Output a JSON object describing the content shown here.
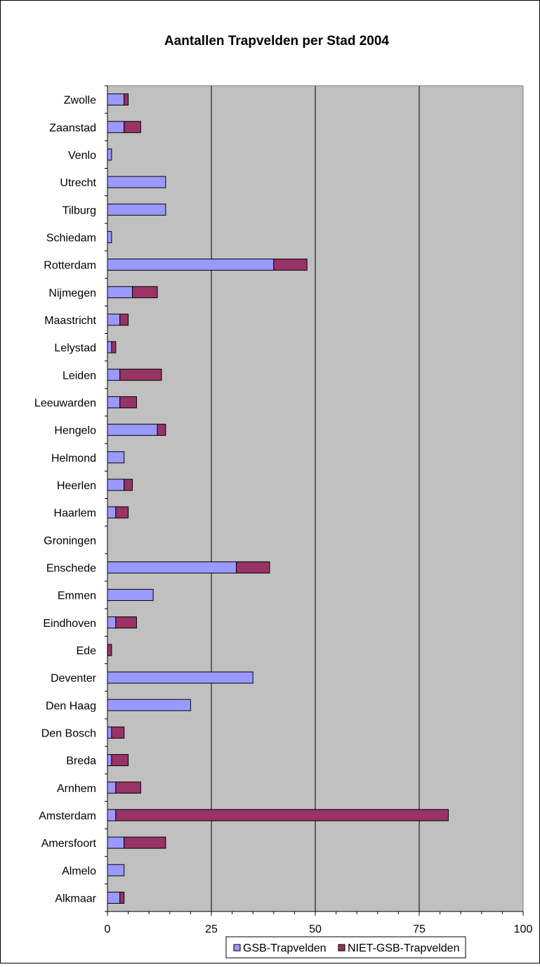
{
  "chart_data": {
    "type": "bar",
    "orientation": "horizontal",
    "stacked": true,
    "title": "Aantallen Trapvelden per Stad 2004",
    "xlabel": "",
    "ylabel": "",
    "xlim": [
      0,
      100
    ],
    "x_ticks": [
      "0",
      "25",
      "50",
      "75",
      "100"
    ],
    "grid": true,
    "legend_position": "bottom",
    "categories": [
      "Zwolle",
      "Zaanstad",
      "Venlo",
      "Utrecht",
      "Tilburg",
      "Schiedam",
      "Rotterdam",
      "Nijmegen",
      "Maastricht",
      "Lelystad",
      "Leiden",
      "Leeuwarden",
      "Hengelo",
      "Helmond",
      "Heerlen",
      "Haarlem",
      "Groningen",
      "Enschede",
      "Emmen",
      "Eindhoven",
      "Ede",
      "Deventer",
      "Den Haag",
      "Den Bosch",
      "Breda",
      "Arnhem",
      "Amsterdam",
      "Amersfoort",
      "Almelo",
      "Alkmaar"
    ],
    "series": [
      {
        "name": "GSB-Trapvelden",
        "color": "#9999ff",
        "values": [
          4,
          4,
          1,
          14,
          14,
          1,
          40,
          6,
          3,
          1,
          3,
          3,
          12,
          4,
          4,
          2,
          0,
          31,
          11,
          2,
          0,
          35,
          20,
          1,
          1,
          2,
          2,
          4,
          4,
          3
        ]
      },
      {
        "name": "NIET-GSB-Trapvelden",
        "color": "#993366",
        "values": [
          1,
          4,
          0,
          0,
          0,
          0,
          8,
          6,
          2,
          1,
          10,
          4,
          2,
          0,
          2,
          3,
          0,
          8,
          0,
          5,
          1,
          0,
          0,
          3,
          4,
          6,
          80,
          10,
          0,
          1
        ]
      }
    ],
    "plot_background": "#c0c0c0"
  }
}
